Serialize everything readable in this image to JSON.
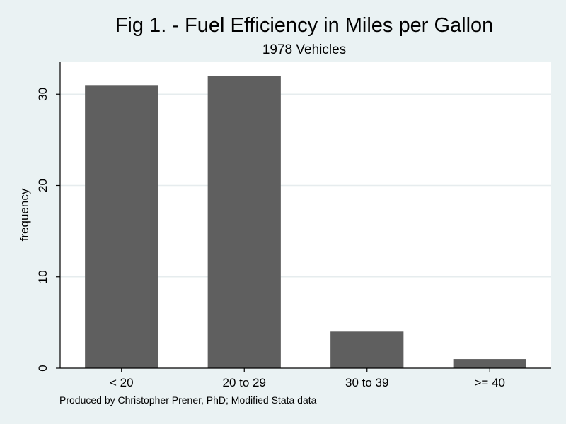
{
  "chart_data": {
    "type": "bar",
    "title": "Fig 1. - Fuel Efficiency in Miles per Gallon",
    "subtitle": "1978 Vehicles",
    "xlabel": "",
    "ylabel": "frequency",
    "categories": [
      "< 20",
      "20 to 29",
      "30 to 39",
      ">= 40"
    ],
    "values": [
      31,
      32,
      4,
      1
    ],
    "ylim": [
      0,
      33.5
    ],
    "yticks": [
      0,
      10,
      20,
      30
    ],
    "grid": true,
    "legend": "none",
    "note": "Produced by Christopher Prener, PhD; Modified Stata data",
    "colors": {
      "background": "#eaf2f3",
      "plot_area": "#ffffff",
      "bar": "#5f5f5f",
      "gridline": "#e6ecee"
    }
  }
}
